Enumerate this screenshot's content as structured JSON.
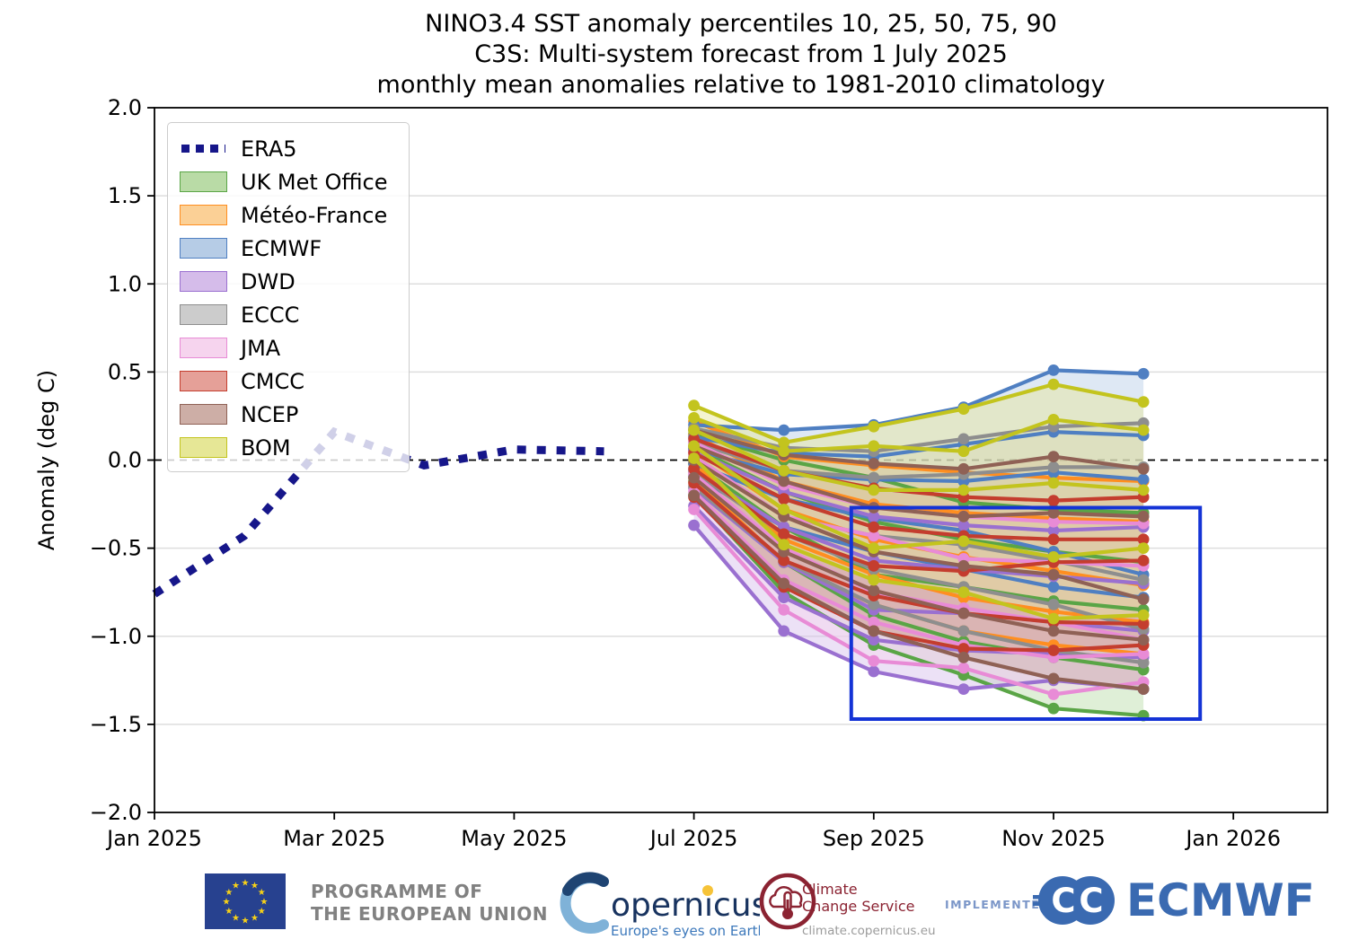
{
  "title": {
    "line1": "NINO3.4 SST anomaly percentiles 10, 25, 50, 75, 90",
    "line2": "C3S: Multi-system forecast from 1 July 2025",
    "line3": "monthly mean anomalies relative to 1981-2010 climatology"
  },
  "y_axis": {
    "label": "Anomaly (deg C)",
    "ticks": [
      {
        "label": "2.0",
        "value": 2.0
      },
      {
        "label": "1.5",
        "value": 1.5
      },
      {
        "label": "1.0",
        "value": 1.0
      },
      {
        "label": "0.5",
        "value": 0.5
      },
      {
        "label": "0.0",
        "value": 0.0
      },
      {
        "label": "−0.5",
        "value": -0.5
      },
      {
        "label": "−1.0",
        "value": -1.0
      },
      {
        "label": "−1.5",
        "value": -1.5
      },
      {
        "label": "−2.0",
        "value": -2.0
      }
    ]
  },
  "x_axis": {
    "ticks": [
      {
        "label": "Jan 2025",
        "month": 0
      },
      {
        "label": "Mar 2025",
        "month": 2
      },
      {
        "label": "May 2025",
        "month": 4
      },
      {
        "label": "Jul 2025",
        "month": 6
      },
      {
        "label": "Sep 2025",
        "month": 8
      },
      {
        "label": "Nov 2025",
        "month": 10
      },
      {
        "label": "Jan 2026",
        "month": 12
      }
    ]
  },
  "legend": {
    "items": [
      {
        "label": "ERA5",
        "type": "dashed-line",
        "line": "#16168a",
        "fill": "#16168a"
      },
      {
        "label": "UK Met Office",
        "type": "band",
        "line": "#5aa546",
        "fill": "#b9dba6"
      },
      {
        "label": "Météo-France",
        "type": "band",
        "line": "#ff8e20",
        "fill": "#fbd096"
      },
      {
        "label": "ECMWF",
        "type": "band",
        "line": "#4f7fc2",
        "fill": "#b6cce6"
      },
      {
        "label": "DWD",
        "type": "band",
        "line": "#9a70d0",
        "fill": "#d5bcea"
      },
      {
        "label": "ECCC",
        "type": "band",
        "line": "#8e8e8e",
        "fill": "#cccccc"
      },
      {
        "label": "JMA",
        "type": "band",
        "line": "#e88bd6",
        "fill": "#f6d4ee"
      },
      {
        "label": "CMCC",
        "type": "band",
        "line": "#c43d2e",
        "fill": "#e5a098"
      },
      {
        "label": "NCEP",
        "type": "band",
        "line": "#8f6155",
        "fill": "#cdaea6"
      },
      {
        "label": "BOM",
        "type": "band",
        "line": "#c3c41e",
        "fill": "#e6e796"
      }
    ]
  },
  "chart_data": {
    "type": "line",
    "title": "NINO3.4 SST anomaly percentiles 10, 25, 50, 75, 90 / C3S: Multi-system forecast from 1 July 2025 / monthly mean anomalies relative to 1981-2010 climatology",
    "ylabel": "Anomaly (deg C)",
    "ylim": [
      -2.0,
      2.0
    ],
    "xlim_months": [
      0,
      13.05
    ],
    "grid": "horizontal",
    "zero_line": "black-dashed",
    "observed": {
      "name": "ERA5",
      "color": "#16168a",
      "style": "thick-square-dashed",
      "months": [
        "Jan 2025",
        "Feb 2025",
        "Mar 2025",
        "Apr 2025",
        "May 2025",
        "Jun 2025"
      ],
      "values": [
        -0.76,
        -0.43,
        0.16,
        -0.03,
        0.06,
        0.05
      ]
    },
    "forecast": {
      "months": [
        "Jul 2025",
        "Aug 2025",
        "Sep 2025",
        "Oct 2025",
        "Nov 2025",
        "Dec 2025"
      ],
      "start_month_index": 6,
      "percentiles": [
        10,
        25,
        50,
        75,
        90
      ],
      "models": [
        {
          "name": "UK Met Office",
          "line": "#5aa546",
          "fill": "#b9dba6",
          "p10": [
            -0.2,
            -0.75,
            -1.05,
            -1.22,
            -1.41,
            -1.45
          ],
          "p25": [
            -0.12,
            -0.58,
            -0.88,
            -1.03,
            -1.12,
            -1.19
          ],
          "p50": [
            -0.02,
            -0.38,
            -0.65,
            -0.72,
            -0.8,
            -0.85
          ],
          "p75": [
            0.07,
            -0.18,
            -0.35,
            -0.45,
            -0.52,
            -0.58
          ],
          "p90": [
            0.15,
            0.0,
            -0.1,
            -0.24,
            -0.28,
            -0.3
          ]
        },
        {
          "name": "Météo-France",
          "line": "#ff8e20",
          "fill": "#fbd096",
          "p10": [
            -0.1,
            -0.58,
            -0.82,
            -0.97,
            -1.05,
            -1.1
          ],
          "p25": [
            -0.02,
            -0.45,
            -0.65,
            -0.78,
            -0.86,
            -0.92
          ],
          "p50": [
            0.06,
            -0.28,
            -0.45,
            -0.55,
            -0.63,
            -0.71
          ],
          "p75": [
            0.14,
            -0.12,
            -0.25,
            -0.3,
            -0.33,
            -0.35
          ],
          "p90": [
            0.22,
            0.02,
            -0.03,
            -0.07,
            -0.1,
            -0.12
          ]
        },
        {
          "name": "ECMWF",
          "line": "#4f7fc2",
          "fill": "#b6cce6",
          "p10": [
            -0.09,
            -0.38,
            -0.52,
            -0.62,
            -0.72,
            -0.78
          ],
          "p25": [
            -0.02,
            -0.22,
            -0.33,
            -0.4,
            -0.52,
            -0.65
          ],
          "p50": [
            0.06,
            -0.08,
            -0.11,
            -0.12,
            -0.07,
            -0.11
          ],
          "p75": [
            0.13,
            0.04,
            0.02,
            0.09,
            0.16,
            0.14
          ],
          "p90": [
            0.2,
            0.17,
            0.2,
            0.3,
            0.51,
            0.49
          ]
        },
        {
          "name": "DWD",
          "line": "#9a70d0",
          "fill": "#d5bcea",
          "p10": [
            -0.37,
            -0.97,
            -1.2,
            -1.3,
            -1.25,
            -1.3
          ],
          "p25": [
            -0.26,
            -0.78,
            -1.02,
            -1.08,
            -1.1,
            -1.12
          ],
          "p50": [
            -0.16,
            -0.58,
            -0.85,
            -0.87,
            -0.92,
            -0.97
          ],
          "p75": [
            -0.06,
            -0.38,
            -0.57,
            -0.62,
            -0.66,
            -0.7
          ],
          "p90": [
            0.05,
            -0.18,
            -0.32,
            -0.37,
            -0.4,
            -0.38
          ]
        },
        {
          "name": "ECCC",
          "line": "#8e8e8e",
          "fill": "#cccccc",
          "p10": [
            -0.15,
            -0.57,
            -0.82,
            -0.97,
            -1.08,
            -1.15
          ],
          "p25": [
            -0.07,
            -0.42,
            -0.62,
            -0.72,
            -0.82,
            -0.96
          ],
          "p50": [
            0.02,
            -0.32,
            -0.43,
            -0.48,
            -0.57,
            -0.68
          ],
          "p75": [
            0.1,
            -0.06,
            -0.1,
            -0.08,
            -0.04,
            -0.04
          ],
          "p90": [
            0.18,
            0.07,
            0.05,
            0.12,
            0.19,
            0.21
          ]
        },
        {
          "name": "JMA",
          "line": "#e88bd6",
          "fill": "#f6d4ee",
          "p10": [
            -0.28,
            -0.85,
            -1.14,
            -1.18,
            -1.33,
            -1.26
          ],
          "p25": [
            -0.18,
            -0.68,
            -0.92,
            -1.05,
            -1.12,
            -1.1
          ],
          "p50": [
            -0.08,
            -0.5,
            -0.75,
            -0.84,
            -0.92,
            -1.02
          ],
          "p75": [
            0.02,
            -0.32,
            -0.43,
            -0.56,
            -0.58,
            -0.6
          ],
          "p90": [
            0.1,
            -0.14,
            -0.27,
            -0.32,
            -0.35,
            -0.36
          ]
        },
        {
          "name": "CMCC",
          "line": "#c43d2e",
          "fill": "#e5a098",
          "p10": [
            -0.21,
            -0.72,
            -0.97,
            -1.07,
            -1.08,
            -1.05
          ],
          "p25": [
            -0.13,
            -0.57,
            -0.77,
            -0.87,
            -0.92,
            -0.93
          ],
          "p50": [
            -0.05,
            -0.42,
            -0.6,
            -0.63,
            -0.58,
            -0.57
          ],
          "p75": [
            0.04,
            -0.22,
            -0.38,
            -0.43,
            -0.45,
            -0.45
          ],
          "p90": [
            0.12,
            -0.06,
            -0.16,
            -0.21,
            -0.23,
            -0.21
          ]
        },
        {
          "name": "NCEP",
          "line": "#8f6155",
          "fill": "#cdaea6",
          "p10": [
            -0.2,
            -0.7,
            -0.97,
            -1.12,
            -1.24,
            -1.3
          ],
          "p25": [
            -0.1,
            -0.52,
            -0.74,
            -0.87,
            -0.97,
            -1.02
          ],
          "p50": [
            0.0,
            -0.32,
            -0.52,
            -0.6,
            -0.65,
            -0.79
          ],
          "p75": [
            0.08,
            -0.12,
            -0.27,
            -0.32,
            -0.3,
            -0.32
          ],
          "p90": [
            0.17,
            0.03,
            -0.02,
            -0.05,
            0.02,
            -0.05
          ]
        },
        {
          "name": "BOM",
          "line": "#c3c41e",
          "fill": "#e6e796",
          "p10": [
            0.01,
            -0.48,
            -0.68,
            -0.75,
            -0.9,
            -0.88
          ],
          "p25": [
            0.08,
            -0.28,
            -0.5,
            -0.46,
            -0.55,
            -0.5
          ],
          "p50": [
            0.17,
            -0.06,
            -0.17,
            -0.17,
            -0.13,
            -0.17
          ],
          "p75": [
            0.24,
            0.05,
            0.08,
            0.05,
            0.23,
            0.17
          ],
          "p90": [
            0.31,
            0.1,
            0.19,
            0.29,
            0.43,
            0.33
          ]
        }
      ]
    },
    "highlight_box": {
      "color": "#1433d6",
      "month_start": 7.75,
      "month_end": 11.63,
      "value_top": -0.27,
      "value_bottom": -1.47
    }
  },
  "footer": {
    "eu_programme": {
      "line1": "PROGRAMME OF",
      "line2": "THE EUROPEAN UNION",
      "flag_bg": "#27418f",
      "star_color": "#f7d117",
      "text_color": "#818181"
    },
    "copernicus": {
      "wordmark": "opernicus",
      "tagline": "Europe's eyes on Earth",
      "crescent_color": "#5d93bd",
      "word_color": "#18335f",
      "tagline_color": "#3c78bb"
    },
    "climate_change_service": {
      "line1": "Climate",
      "line2": "Change Service",
      "url": "climate.copernicus.eu",
      "color": "#8b2332"
    },
    "implemented_by": {
      "label": "IMPLEMENTED BY",
      "color": "#7b96c8"
    },
    "ecmwf": {
      "label": "ECMWF",
      "color": "#3a6ab1"
    }
  }
}
